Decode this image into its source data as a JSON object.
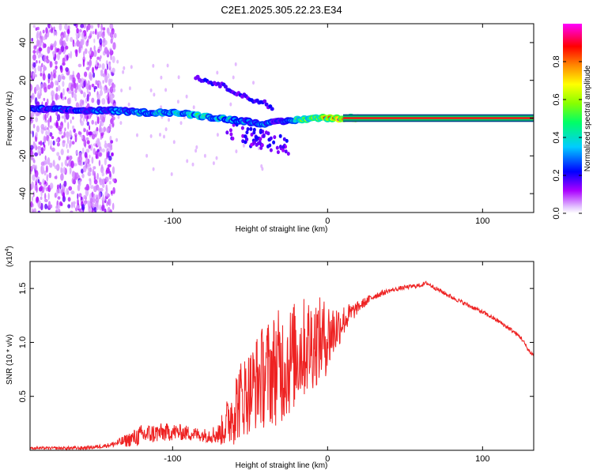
{
  "title": "C2E1.2025.305.22.23.E34",
  "chart_data": [
    {
      "type": "heatmap",
      "xlabel": "Height of straight line (km)",
      "ylabel": "Frequency (Hz)",
      "xlim": [
        -192,
        133
      ],
      "ylim": [
        -50,
        50
      ],
      "xticks": [
        -100,
        0,
        100
      ],
      "yticks": [
        -40,
        -20,
        0,
        20,
        40
      ],
      "colorbar": {
        "label": "Normalized spectral amplitude",
        "range": [
          0,
          1
        ],
        "ticks": [
          "0.0",
          "0.2",
          "0.4",
          "0.6",
          "0.8"
        ],
        "colors": [
          "#ffffff",
          "#aa00ff",
          "#0000ff",
          "#00ffff",
          "#00ff00",
          "#ffff00",
          "#ff8800",
          "#ff0000",
          "#ff00ff"
        ]
      },
      "ridge": {
        "x": [
          -192,
          -160,
          -140,
          -120,
          -100,
          -80,
          -70,
          -60,
          -50,
          -40,
          -30,
          -20,
          -10,
          0,
          10,
          20,
          133
        ],
        "y": [
          5,
          4,
          4,
          3,
          3,
          1,
          0,
          -1,
          -2,
          -3,
          -2,
          -1,
          0,
          0,
          0,
          0,
          0
        ],
        "amplitude": [
          0.3,
          0.3,
          0.35,
          0.4,
          0.45,
          0.5,
          0.45,
          0.4,
          0.35,
          0.35,
          0.3,
          0.5,
          0.7,
          0.85,
          0.9,
          0.95,
          0.95
        ]
      },
      "branch": {
        "x": [
          -85,
          -80,
          -70,
          -60,
          -50,
          -40,
          -35
        ],
        "y": [
          22,
          20,
          18,
          14,
          10,
          8,
          4
        ]
      }
    },
    {
      "type": "line",
      "xlabel": "Height of straight line (km)",
      "ylabel": "SNR (10 * v/v)",
      "yscale_note": "(x10",
      "yscale_exp": "4",
      "xlim": [
        -192,
        133
      ],
      "ylim": [
        0,
        1.75
      ],
      "xticks": [
        -100,
        0,
        100
      ],
      "yticks": [
        0.5,
        1.0,
        1.5
      ],
      "color": "#ee2222",
      "x": [
        -192,
        -160,
        -150,
        -140,
        -130,
        -120,
        -110,
        -100,
        -90,
        -80,
        -70,
        -65,
        -60,
        -55,
        -50,
        -45,
        -40,
        -35,
        -30,
        -25,
        -20,
        -15,
        -10,
        -5,
        0,
        10,
        20,
        30,
        40,
        50,
        60,
        64,
        70,
        80,
        90,
        100,
        110,
        120,
        125,
        130,
        133
      ],
      "y": [
        0.02,
        0.02,
        0.03,
        0.05,
        0.09,
        0.14,
        0.16,
        0.17,
        0.16,
        0.14,
        0.15,
        0.25,
        0.4,
        0.5,
        0.55,
        0.65,
        0.7,
        0.75,
        0.78,
        0.82,
        0.9,
        0.95,
        1.0,
        1.02,
        1.05,
        1.2,
        1.33,
        1.43,
        1.48,
        1.51,
        1.53,
        1.55,
        1.5,
        1.42,
        1.35,
        1.28,
        1.2,
        1.1,
        1.04,
        0.92,
        0.88
      ],
      "noise": {
        "x": [
          -192,
          -140,
          -120,
          -100,
          -80,
          -70,
          -60,
          -50,
          -40,
          -30,
          -20,
          -10,
          0,
          10,
          20,
          40,
          60,
          80,
          100,
          120,
          133
        ],
        "amp": [
          0.01,
          0.02,
          0.1,
          0.08,
          0.06,
          0.1,
          0.35,
          0.4,
          0.5,
          0.55,
          0.5,
          0.45,
          0.35,
          0.15,
          0.05,
          0.02,
          0.02,
          0.02,
          0.02,
          0.02,
          0.02
        ]
      }
    }
  ]
}
